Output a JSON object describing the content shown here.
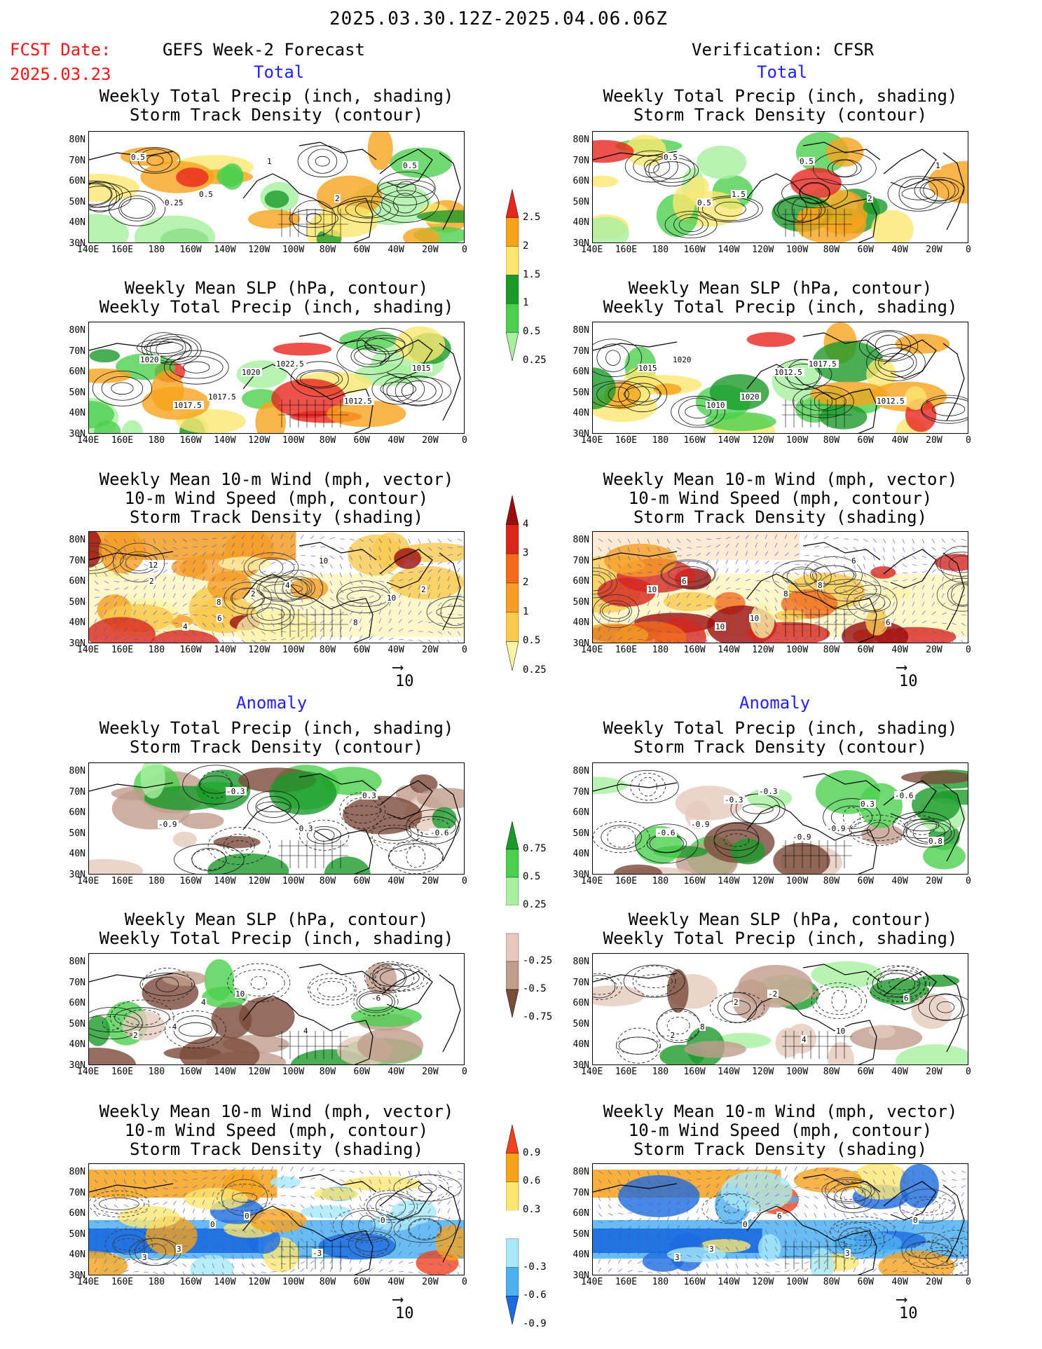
{
  "header": {
    "period": "2025.03.30.12Z-2025.04.06.06Z",
    "fcst_label": "FCST Date:",
    "fcst_date": "2025.03.23",
    "left_title": "GEFS Week-2 Forecast",
    "right_title": "Verification: CFSR",
    "total_label": "Total",
    "anomaly_label": "Anomaly"
  },
  "panel_titles": {
    "precip_storm": [
      "Weekly Total Precip (inch, shading)",
      "Storm Track Density (contour)"
    ],
    "slp_precip": [
      "Weekly Mean SLP (hPa, contour)",
      "Weekly Total Precip (inch, shading)"
    ],
    "wind_storm": [
      "Weekly Mean 10-m Wind (mph, vector)",
      "10-m Wind Speed (mph, contour)",
      "Storm Track Density (shading)"
    ]
  },
  "axes": {
    "lat_ticks": [
      "80N",
      "70N",
      "60N",
      "50N",
      "40N",
      "30N"
    ],
    "lon_ticks": [
      "140E",
      "160E",
      "180",
      "160W",
      "140W",
      "120W",
      "100W",
      "80W",
      "60W",
      "40W",
      "20W",
      "0"
    ]
  },
  "vector_reference": "10",
  "colorbars": {
    "total_precip": {
      "labels": [
        "2.5",
        "2",
        "1.5",
        "1",
        "0.5",
        "0.25"
      ],
      "colors": [
        "#e8261f",
        "#f7a21b",
        "#fde771",
        "#1b9a2a",
        "#4ccf4f",
        "#a8f0a0"
      ]
    },
    "total_storm": {
      "labels": [
        "4",
        "3",
        "2",
        "1",
        "0.5",
        "0.25"
      ],
      "colors": [
        "#9b0d0d",
        "#d8261b",
        "#f36b1a",
        "#f59d24",
        "#f9c94d",
        "#fdf2a6"
      ]
    },
    "anom_precip": {
      "labels": [
        "0.75",
        "0.5",
        "0.25",
        "-0.25",
        "-0.5",
        "-0.75"
      ],
      "colors": [
        "#1b9a2a",
        "#4ccf4f",
        "#a8f0a0",
        "#ffffff",
        "#e6c9bd",
        "#c29c8c",
        "#7a4a3a"
      ]
    },
    "anom_storm": {
      "labels": [
        "0.9",
        "0.6",
        "0.3",
        "-0.3",
        "-0.6",
        "-0.9"
      ],
      "colors": [
        "#f0421e",
        "#f7a21b",
        "#fde771",
        "#ffffff",
        "#a8e8f8",
        "#4fb0f0",
        "#1b6be0"
      ]
    }
  },
  "map_labels": {
    "fc_total_precip": [
      "0.5",
      "0.5",
      "1",
      "2",
      "0.5",
      "0.25"
    ],
    "fc_total_slp": [
      "1020",
      "1017.5",
      "1022.5",
      "1012.5",
      "1015",
      "1017.5",
      "1020"
    ],
    "fc_total_wind": [
      "2",
      "6",
      "4",
      "8",
      "2",
      "4",
      "2",
      "10",
      "10",
      "12",
      "8"
    ],
    "vf_total_precip": [
      "0.5",
      "1.5",
      "0.5",
      "2",
      "1",
      "0.5"
    ],
    "vf_total_slp": [
      "1020",
      "1020",
      "1017.5",
      "1012.5",
      "1015",
      "1010",
      "1012.5"
    ],
    "vf_total_wind": [
      "6",
      "10",
      "8",
      "6",
      "10",
      "10",
      "8",
      "6"
    ],
    "fc_anom_precip": [
      "-0.9",
      "-0.3",
      "-0.3",
      "0.3",
      "-0.6"
    ],
    "vf_anom_precip": [
      "-0.9",
      "-0.3",
      "-0.9",
      "-0.6",
      "-0.6",
      "-0.3",
      "-0.9",
      "0.3",
      "0.8"
    ],
    "fc_anom_slp": [
      "-4",
      "10",
      "4",
      "-6",
      "2",
      "4"
    ],
    "vf_anom_slp": [
      "8",
      "-2",
      "10",
      "6",
      "-2",
      "2",
      "4"
    ],
    "fc_anom_wind": [
      "3",
      "0",
      "-3",
      "0",
      "3",
      "0"
    ],
    "vf_anom_wind": [
      "3",
      "6",
      "3",
      "0",
      "3",
      "0"
    ]
  }
}
